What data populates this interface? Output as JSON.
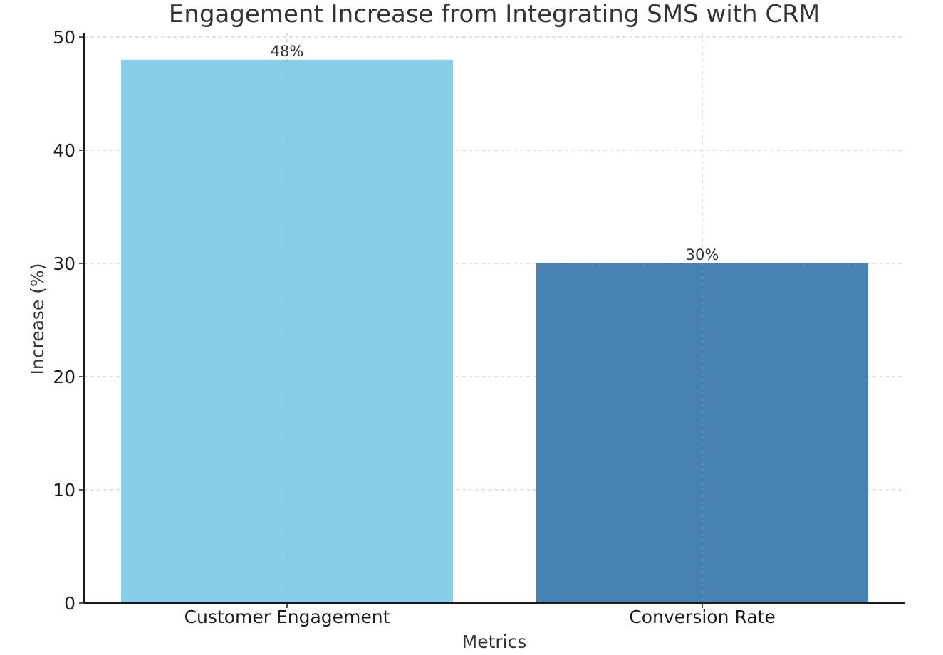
{
  "chart_data": {
    "type": "bar",
    "title": "Engagement Increase from Integrating SMS with CRM",
    "xlabel": "Metrics",
    "ylabel": "Increase (%)",
    "categories": [
      "Customer Engagement",
      "Conversion Rate"
    ],
    "values": [
      48,
      30
    ],
    "data_labels": [
      "48%",
      "30%"
    ],
    "colors": [
      "#87CEEB",
      "#4682B4"
    ],
    "ylim": [
      0,
      50
    ],
    "yticks": [
      0,
      10,
      20,
      30,
      40,
      50
    ],
    "grid": true,
    "legend": "none"
  }
}
